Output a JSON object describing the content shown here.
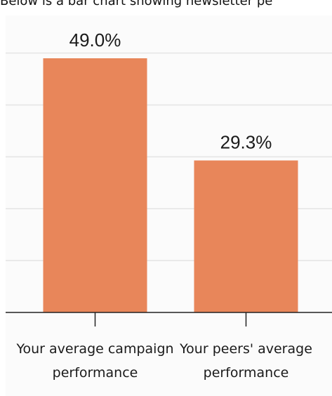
{
  "caption": "Below is a bar chart showing newsletter pe",
  "colors": {
    "bar": "#e8865a",
    "grid": "#e4e4e4",
    "axis": "#222222",
    "card": "#fbfbfb"
  },
  "chart_data": {
    "type": "bar",
    "title": "",
    "xlabel": "",
    "ylabel": "",
    "categories": [
      [
        "Your average campaign",
        "performance"
      ],
      [
        "Your peers' average",
        "performance"
      ]
    ],
    "values": [
      49.0,
      29.3
    ],
    "value_labels": [
      "49.0%",
      "29.3%"
    ],
    "ylim": [
      0,
      60
    ],
    "grid": true,
    "legend": "none"
  }
}
